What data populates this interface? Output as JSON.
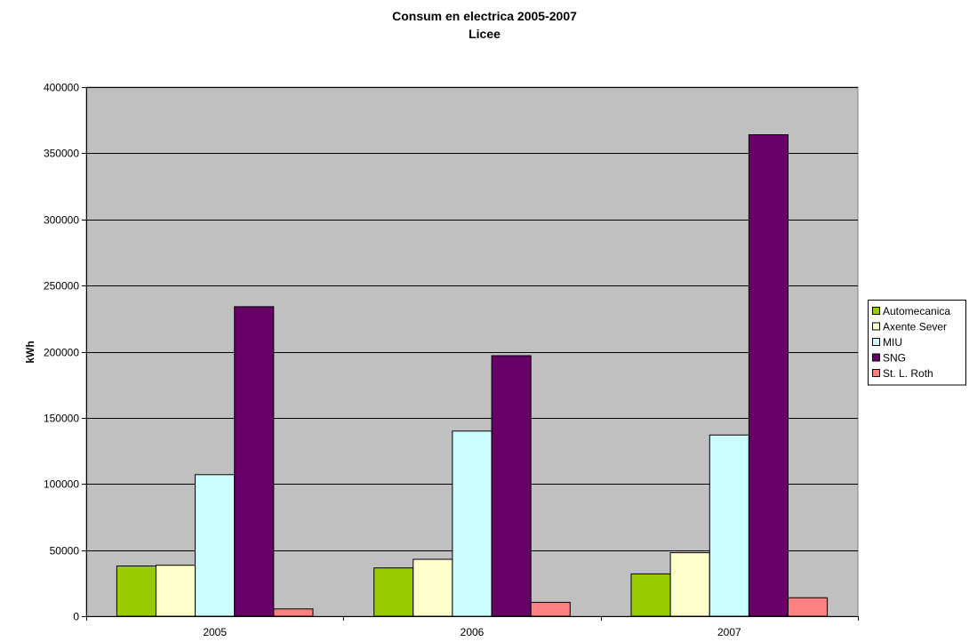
{
  "colors": {
    "plot_background": "#c0c0c0",
    "gridline": "#000000",
    "bar_outline": "#000000"
  },
  "chart_data": {
    "type": "bar",
    "title": "Consum en electrica 2005-2007",
    "subtitle": "Licee",
    "xlabel": "",
    "ylabel": "kWh",
    "ylim": [
      0,
      400000
    ],
    "yticks": [
      0,
      50000,
      100000,
      150000,
      200000,
      250000,
      300000,
      350000,
      400000
    ],
    "grid": true,
    "legend_position": "right",
    "categories": [
      "2005",
      "2006",
      "2007"
    ],
    "series": [
      {
        "name": "Automecanica",
        "color": "#99cc00",
        "values": [
          38000,
          36500,
          32000
        ]
      },
      {
        "name": "Axente Sever",
        "color": "#ffffcc",
        "values": [
          38500,
          43000,
          48000
        ]
      },
      {
        "name": "MIU",
        "color": "#ccffff",
        "values": [
          107000,
          140000,
          137000
        ]
      },
      {
        "name": "SNG",
        "color": "#660066",
        "values": [
          234000,
          197000,
          364000
        ]
      },
      {
        "name": "St. L. Roth",
        "color": "#ff8080",
        "values": [
          5500,
          10500,
          14000
        ]
      }
    ]
  }
}
